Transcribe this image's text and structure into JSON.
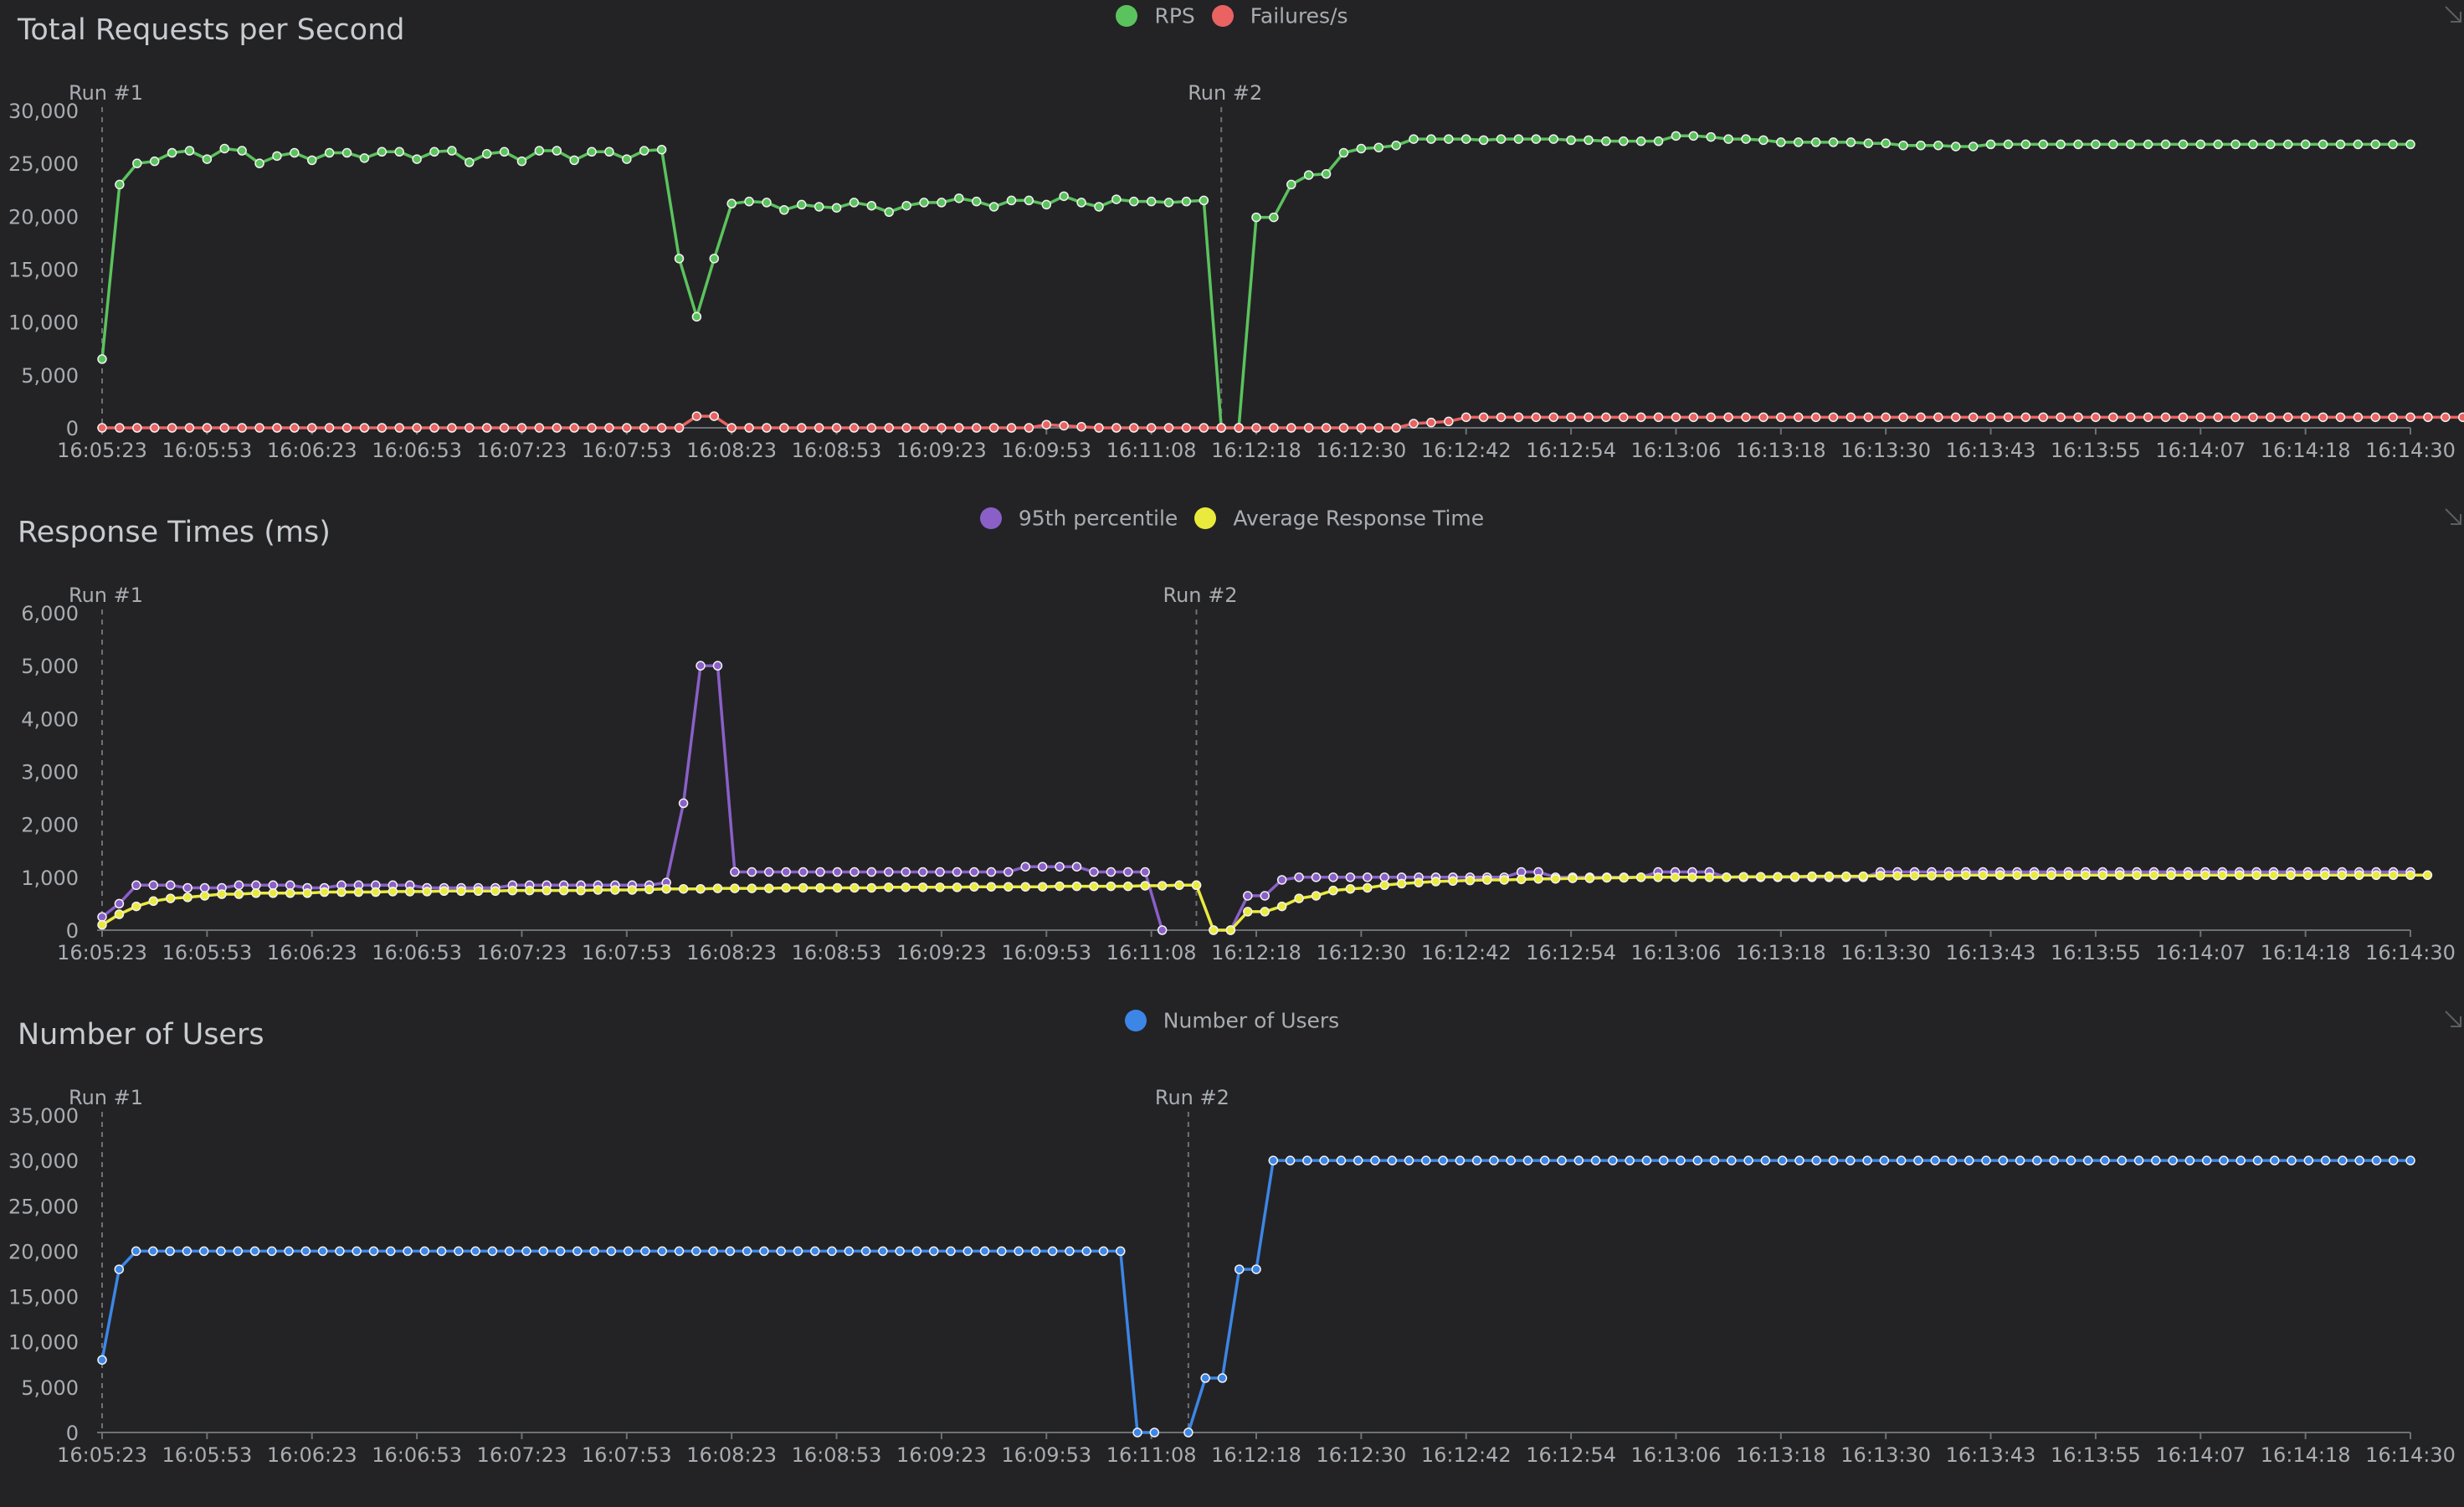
{
  "panels": [
    {
      "title": "Total Requests per Second"
    },
    {
      "title": "Response Times (ms)"
    },
    {
      "title": "Number of Users"
    }
  ],
  "chart_data": [
    {
      "type": "line",
      "title": "Total Requests per Second",
      "xlabel": "",
      "ylabel": "",
      "ylim": [
        0,
        30000
      ],
      "y_ticks": [
        0,
        5000,
        10000,
        15000,
        20000,
        25000,
        30000
      ],
      "y_tick_labels": [
        "0",
        "5,000",
        "10,000",
        "15,000",
        "20,000",
        "25,000",
        "30,000"
      ],
      "x_tick_labels": [
        "16:05:23",
        "16:05:53",
        "16:06:23",
        "16:06:53",
        "16:07:23",
        "16:07:53",
        "16:08:23",
        "16:08:53",
        "16:09:23",
        "16:09:53",
        "16:11:08",
        "16:12:18",
        "16:12:30",
        "16:12:42",
        "16:12:54",
        "16:13:06",
        "16:13:18",
        "16:13:30",
        "16:13:43",
        "16:13:55",
        "16:14:07",
        "16:14:18",
        "16:14:30"
      ],
      "legend_position": "top-center",
      "grid": false,
      "runs": [
        {
          "label": "Run #1",
          "start_index": 0
        },
        {
          "label": "Run #2",
          "start_index": 64
        }
      ],
      "series": [
        {
          "name": "RPS",
          "color": "#5bc35d",
          "values": [
            6500,
            23000,
            25000,
            25200,
            26000,
            26200,
            25400,
            26400,
            26200,
            25000,
            25700,
            26000,
            25300,
            26000,
            26000,
            25500,
            26100,
            26100,
            25400,
            26100,
            26200,
            25100,
            25900,
            26100,
            25200,
            26200,
            26200,
            25300,
            26100,
            26100,
            25400,
            26200,
            26300,
            16000,
            10500,
            16000,
            21200,
            21400,
            21300,
            20600,
            21100,
            20900,
            20800,
            21300,
            21000,
            20400,
            21000,
            21300,
            21300,
            21700,
            21400,
            20900,
            21500,
            21500,
            21100,
            21900,
            21300,
            20900,
            21600,
            21400,
            21400,
            21300,
            21400,
            21500,
            0,
            0,
            19900,
            19900,
            23000,
            23900,
            24000,
            26000,
            26400,
            26500,
            26700,
            27300,
            27300,
            27300,
            27300,
            27200,
            27300,
            27300,
            27300,
            27300,
            27200,
            27200,
            27100,
            27100,
            27100,
            27100,
            27600,
            27600,
            27500,
            27300,
            27300,
            27200,
            27000,
            27000,
            27000,
            27000,
            27000,
            26900,
            26900,
            26700,
            26700,
            26700,
            26600,
            26600,
            26800,
            26800,
            26800,
            26800,
            26800,
            26800,
            26800,
            26800,
            26800,
            26800,
            26800,
            26800,
            26800,
            26800,
            26800,
            26800,
            26800,
            26800,
            26800,
            26800,
            26800,
            26800,
            26800,
            26800,
            26800
          ]
        },
        {
          "name": "Failures/s",
          "color": "#ea6362",
          "values": [
            0,
            0,
            0,
            0,
            0,
            0,
            0,
            0,
            0,
            0,
            0,
            0,
            0,
            0,
            0,
            0,
            0,
            0,
            0,
            0,
            0,
            0,
            0,
            0,
            0,
            0,
            0,
            0,
            0,
            0,
            0,
            0,
            0,
            0,
            1100,
            1100,
            0,
            0,
            0,
            0,
            0,
            0,
            0,
            0,
            0,
            0,
            0,
            0,
            0,
            0,
            0,
            0,
            0,
            0,
            300,
            200,
            100,
            0,
            0,
            0,
            0,
            0,
            0,
            0,
            0,
            0,
            0,
            0,
            0,
            0,
            0,
            0,
            0,
            0,
            0,
            400,
            500,
            600,
            1000,
            1000,
            1000,
            1000,
            1000,
            1000,
            1000,
            1000,
            1000,
            1000,
            1000,
            1000,
            1000,
            1000,
            1000,
            1000,
            1000,
            1000,
            1000,
            1000,
            1000,
            1000,
            1000,
            1000,
            1000,
            1000,
            1000,
            1000,
            1000,
            1000,
            1000,
            1000,
            1000,
            1000,
            1000,
            1000,
            1000,
            1000,
            1000,
            1000,
            1000,
            1000,
            1000,
            1000,
            1000,
            1000,
            1000,
            1000,
            1000,
            1000,
            1000,
            1000,
            1000,
            1000,
            1000,
            1000,
            1000,
            1000,
            1000,
            1000
          ]
        }
      ]
    },
    {
      "type": "line",
      "title": "Response Times (ms)",
      "xlabel": "",
      "ylabel": "",
      "ylim": [
        0,
        6000
      ],
      "y_ticks": [
        0,
        1000,
        2000,
        3000,
        4000,
        5000,
        6000
      ],
      "y_tick_labels": [
        "0",
        "1,000",
        "2,000",
        "3,000",
        "4,000",
        "5,000",
        "6,000"
      ],
      "x_tick_labels": [
        "16:05:23",
        "16:05:53",
        "16:06:23",
        "16:06:53",
        "16:07:23",
        "16:07:53",
        "16:08:23",
        "16:08:53",
        "16:09:23",
        "16:09:53",
        "16:11:08",
        "16:12:18",
        "16:12:30",
        "16:12:42",
        "16:12:54",
        "16:13:06",
        "16:13:18",
        "16:13:30",
        "16:13:43",
        "16:13:55",
        "16:14:07",
        "16:14:18",
        "16:14:30"
      ],
      "legend_position": "top-center",
      "grid": false,
      "runs": [
        {
          "label": "Run #1",
          "start_index": 0
        },
        {
          "label": "Run #2",
          "start_index": 64
        }
      ],
      "series": [
        {
          "name": "95th percentile",
          "color": "#8a60c8",
          "values": [
            250,
            500,
            850,
            850,
            850,
            800,
            800,
            800,
            850,
            850,
            850,
            850,
            800,
            800,
            850,
            850,
            850,
            850,
            850,
            800,
            800,
            800,
            800,
            800,
            850,
            850,
            850,
            850,
            850,
            850,
            850,
            850,
            850,
            900,
            2400,
            5000,
            5000,
            1100,
            1100,
            1100,
            1100,
            1100,
            1100,
            1100,
            1100,
            1100,
            1100,
            1100,
            1100,
            1100,
            1100,
            1100,
            1100,
            1100,
            1200,
            1200,
            1200,
            1200,
            1100,
            1100,
            1100,
            1100,
            0,
            null,
            850,
            0,
            0,
            650,
            650,
            950,
            1000,
            1000,
            1000,
            1000,
            1000,
            1000,
            1000,
            1000,
            1000,
            1000,
            1000,
            1000,
            1000,
            1100,
            1100,
            1000,
            1000,
            1000,
            1000,
            1000,
            1000,
            1100,
            1100,
            1100,
            1100,
            1000,
            1000,
            1000,
            1000,
            1000,
            1000,
            1000,
            1000,
            1000,
            1100,
            1100,
            1100,
            1100,
            1100,
            1100,
            1100,
            1100,
            1100,
            1100,
            1100,
            1100,
            1100,
            1100,
            1100,
            1100,
            1100,
            1100,
            1100,
            1100,
            1100,
            1100,
            1100,
            1100,
            1100,
            1100,
            1100,
            1100,
            1100,
            1100,
            1100,
            1100
          ]
        },
        {
          "name": "Average Response Time",
          "color": "#eaea3c",
          "values": [
            100,
            300,
            450,
            550,
            600,
            620,
            650,
            680,
            680,
            700,
            700,
            700,
            700,
            720,
            720,
            720,
            720,
            730,
            730,
            730,
            740,
            740,
            740,
            740,
            750,
            750,
            750,
            750,
            750,
            760,
            760,
            760,
            770,
            780,
            780,
            780,
            790,
            790,
            790,
            790,
            800,
            800,
            800,
            800,
            800,
            800,
            810,
            810,
            810,
            810,
            810,
            820,
            820,
            820,
            820,
            820,
            830,
            830,
            830,
            830,
            830,
            840,
            840,
            850,
            850,
            0,
            0,
            350,
            350,
            450,
            600,
            650,
            750,
            780,
            800,
            850,
            880,
            900,
            920,
            930,
            940,
            950,
            950,
            960,
            970,
            970,
            980,
            980,
            990,
            990,
            1000,
            1000,
            1000,
            1000,
            1000,
            1000,
            1010,
            1010,
            1010,
            1010,
            1020,
            1020,
            1020,
            1020,
            1030,
            1030,
            1030,
            1030,
            1030,
            1040,
            1040,
            1040,
            1040,
            1040,
            1040,
            1040,
            1040,
            1040,
            1040,
            1040,
            1040,
            1040,
            1040,
            1040,
            1040,
            1040,
            1040,
            1040,
            1040,
            1040,
            1040,
            1040,
            1040,
            1040,
            1040,
            1040,
            1040
          ]
        }
      ]
    },
    {
      "type": "line",
      "title": "Number of Users",
      "xlabel": "",
      "ylabel": "",
      "ylim": [
        0,
        35000
      ],
      "y_ticks": [
        0,
        5000,
        10000,
        15000,
        20000,
        25000,
        30000,
        35000
      ],
      "y_tick_labels": [
        "0",
        "5,000",
        "10,000",
        "15,000",
        "20,000",
        "25,000",
        "30,000",
        "35,000"
      ],
      "x_tick_labels": [
        "16:05:23",
        "16:05:53",
        "16:06:23",
        "16:06:53",
        "16:07:23",
        "16:07:53",
        "16:08:23",
        "16:08:53",
        "16:09:23",
        "16:09:53",
        "16:11:08",
        "16:12:18",
        "16:12:30",
        "16:12:42",
        "16:12:54",
        "16:13:06",
        "16:13:18",
        "16:13:30",
        "16:13:43",
        "16:13:55",
        "16:14:07",
        "16:14:18",
        "16:14:30"
      ],
      "legend_position": "top-center",
      "grid": false,
      "runs": [
        {
          "label": "Run #1",
          "start_index": 0
        },
        {
          "label": "Run #2",
          "start_index": 64
        }
      ],
      "series": [
        {
          "name": "Number of Users",
          "color": "#3c86e6",
          "values": [
            8000,
            18000,
            20000,
            20000,
            20000,
            20000,
            20000,
            20000,
            20000,
            20000,
            20000,
            20000,
            20000,
            20000,
            20000,
            20000,
            20000,
            20000,
            20000,
            20000,
            20000,
            20000,
            20000,
            20000,
            20000,
            20000,
            20000,
            20000,
            20000,
            20000,
            20000,
            20000,
            20000,
            20000,
            20000,
            20000,
            20000,
            20000,
            20000,
            20000,
            20000,
            20000,
            20000,
            20000,
            20000,
            20000,
            20000,
            20000,
            20000,
            20000,
            20000,
            20000,
            20000,
            20000,
            20000,
            20000,
            20000,
            20000,
            20000,
            20000,
            20000,
            0,
            0,
            null,
            0,
            6000,
            6000,
            18000,
            18000,
            30000,
            30000,
            30000,
            30000,
            30000,
            30000,
            30000,
            30000,
            30000,
            30000,
            30000,
            30000,
            30000,
            30000,
            30000,
            30000,
            30000,
            30000,
            30000,
            30000,
            30000,
            30000,
            30000,
            30000,
            30000,
            30000,
            30000,
            30000,
            30000,
            30000,
            30000,
            30000,
            30000,
            30000,
            30000,
            30000,
            30000,
            30000,
            30000,
            30000,
            30000,
            30000,
            30000,
            30000,
            30000,
            30000,
            30000,
            30000,
            30000,
            30000,
            30000,
            30000,
            30000,
            30000,
            30000,
            30000,
            30000,
            30000,
            30000,
            30000,
            30000,
            30000,
            30000,
            30000,
            30000,
            30000,
            30000,
            30000
          ]
        }
      ]
    }
  ]
}
